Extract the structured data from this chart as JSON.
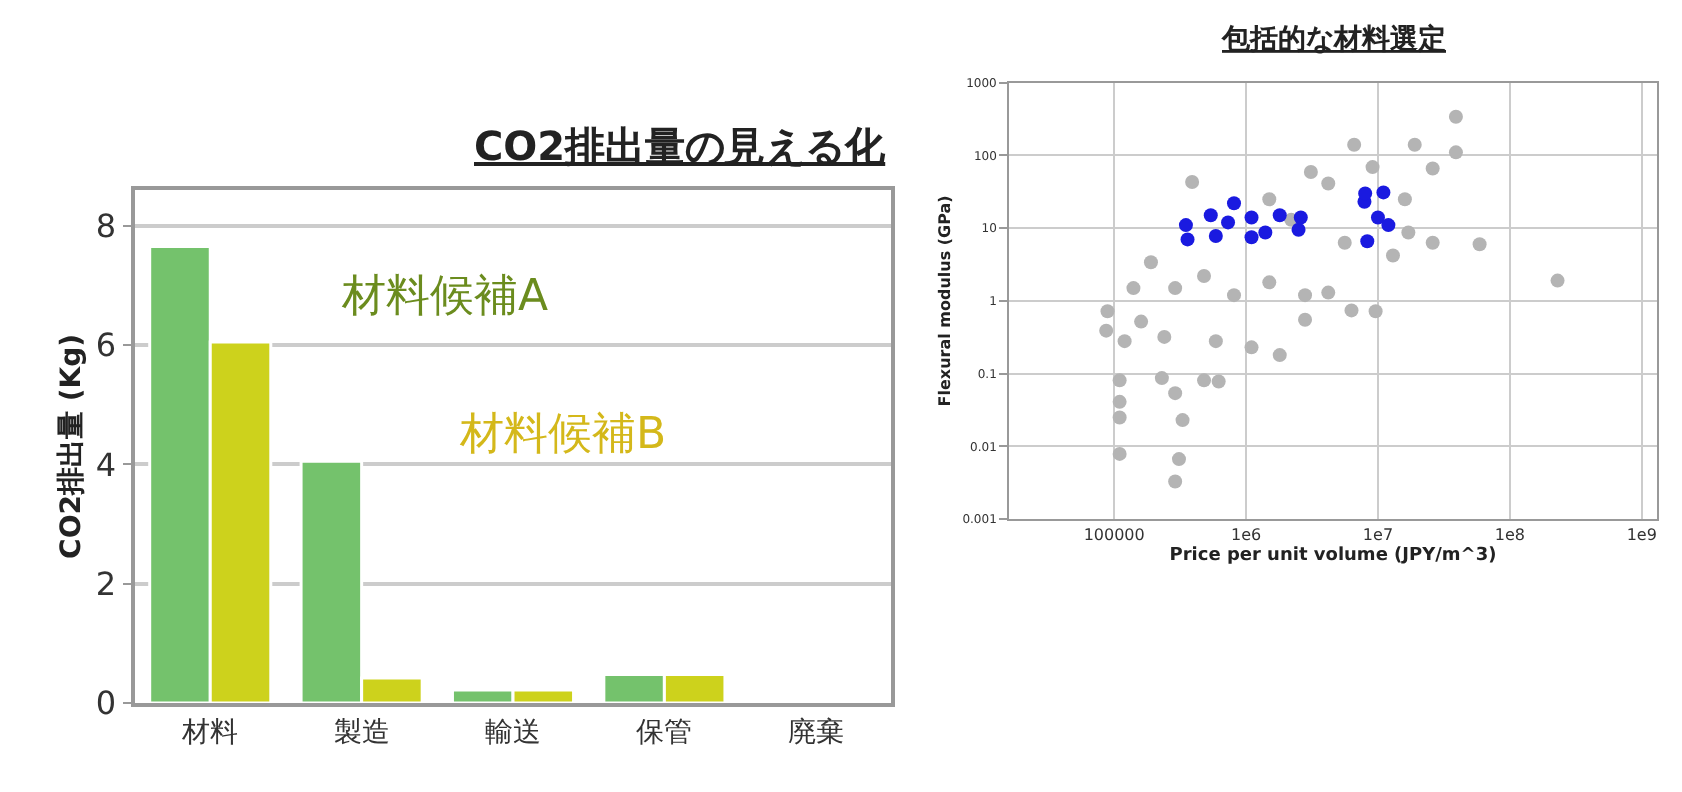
{
  "chart_data": [
    {
      "type": "bar",
      "title": "CO2排出量の見える化",
      "ylabel": "CO2排出量 (Kg)",
      "categories": [
        "材料",
        "製造",
        "輸送",
        "保管",
        "廃棄"
      ],
      "series": [
        {
          "color": "#74c26c",
          "values": [
            7.65,
            4.05,
            0.22,
            0.48,
            null
          ]
        },
        {
          "color": "#cdd21c",
          "values": [
            6.05,
            0.42,
            0.22,
            0.48,
            null
          ]
        }
      ],
      "ylim": [
        0,
        8.6
      ],
      "yticks": [
        0,
        2,
        4,
        6,
        8
      ],
      "grid": "y",
      "legend": false,
      "annotations": [
        "材料候補A",
        "材料候補B"
      ]
    },
    {
      "type": "scatter",
      "title": "包括的な材料選定",
      "xlabel": "Price per unit volume (JPY/m^3)",
      "ylabel": "Flexural modulus (GPa)",
      "log": "xy",
      "marker": "circle",
      "grid": true,
      "legend": false,
      "xlim": [
        16000,
        1300000000
      ],
      "ylim": [
        0.001,
        1000
      ],
      "xticks": [
        {
          "value": 100000,
          "label": "100000"
        },
        {
          "value": 1000000,
          "label": "1e6"
        },
        {
          "value": 10000000,
          "label": "1e7"
        },
        {
          "value": 100000000,
          "label": "1e8"
        },
        {
          "value": 1000000000,
          "label": "1e9"
        }
      ],
      "yticks": [
        0.001,
        0.01,
        0.1,
        1,
        10,
        100,
        1000
      ],
      "series": [
        {
          "color": "#b4b4b4",
          "x": [
            39000000.0,
            39000000.0,
            6600000.0,
            9100000.0,
            19000000.0,
            26000000.0,
            3100000.0,
            4200000.0,
            390000.0,
            1500000.0,
            2200000.0,
            5600000.0,
            17000000.0,
            26000000.0,
            59000000.0,
            230000000.0,
            13000000.0,
            190000.0,
            140000.0,
            290000.0,
            480000.0,
            810000.0,
            1500000.0,
            2800000.0,
            4200000.0,
            6300000.0,
            9600000.0,
            160000.0,
            240000.0,
            590000.0,
            1100000.0,
            1800000.0,
            2800000.0,
            89000.0,
            87000.0,
            120000.0,
            230000.0,
            110000.0,
            290000.0,
            480000.0,
            330000.0,
            110000.0,
            110000.0,
            310000.0,
            290000.0,
            110000.0,
            620000.0,
            16000000.0
          ],
          "values": [
            340,
            110,
            140,
            69,
            140,
            66,
            59,
            41,
            43,
            25,
            13,
            6.3,
            8.7,
            6.3,
            6.0,
            1.9,
            4.2,
            3.4,
            1.5,
            1.5,
            2.2,
            1.2,
            1.8,
            1.2,
            1.3,
            0.74,
            0.72,
            0.52,
            0.32,
            0.28,
            0.23,
            0.18,
            0.55,
            0.72,
            0.39,
            0.28,
            0.087,
            0.081,
            0.054,
            0.081,
            0.023,
            0.025,
            0.0079,
            0.0067,
            0.0033,
            0.041,
            0.078,
            25
          ]
        },
        {
          "color": "#1a1ae0",
          "x": [
            360000.0,
            350000.0,
            540000.0,
            810000.0,
            730000.0,
            590000.0,
            1100000.0,
            1400000.0,
            1800000.0,
            2500000.0,
            2600000.0,
            7900000.0,
            8000000.0,
            11000000.0,
            10000000.0,
            12000000.0,
            8300000.0,
            1100000.0
          ],
          "values": [
            7.0,
            11,
            15,
            22,
            12,
            7.8,
            14,
            8.7,
            15,
            9.5,
            14,
            23,
            30,
            31,
            14,
            11,
            6.6,
            7.5
          ]
        }
      ]
    }
  ]
}
